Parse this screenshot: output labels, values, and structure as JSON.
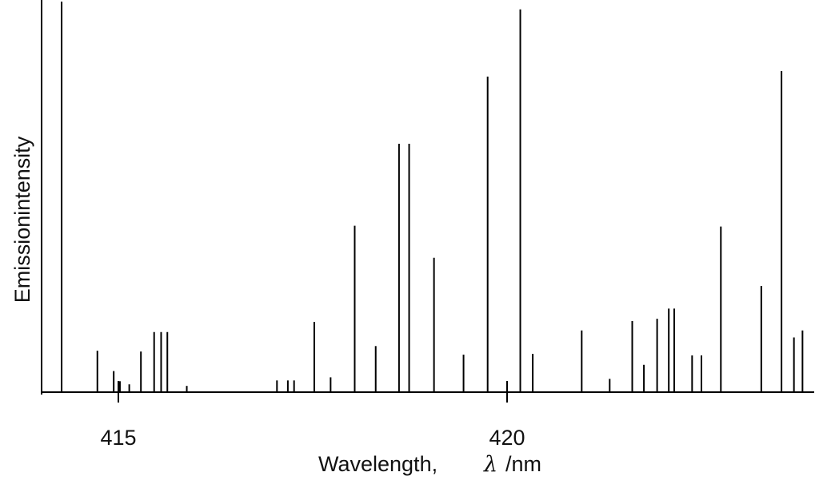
{
  "chart_data": {
    "type": "bar",
    "title": "",
    "xlabel": "Wavelength,",
    "xlabel_symbol": "λ",
    "xlabel_unit": "/nm",
    "ylabel": "Emissionintensity",
    "xlim": [
      414.2,
      424.0
    ],
    "ylim": [
      0,
      100
    ],
    "x_ticks": [
      415,
      420
    ],
    "grid": false,
    "legend": "none",
    "line_color": "#000000",
    "lines": [
      {
        "x": 414.27,
        "y": 100
      },
      {
        "x": 414.73,
        "y": 10.6
      },
      {
        "x": 414.94,
        "y": 5.4
      },
      {
        "x": 415.02,
        "y": 2.8
      },
      {
        "x": 415.14,
        "y": 2.0
      },
      {
        "x": 415.29,
        "y": 10.4
      },
      {
        "x": 415.46,
        "y": 15.4
      },
      {
        "x": 415.55,
        "y": 15.4
      },
      {
        "x": 415.63,
        "y": 15.4
      },
      {
        "x": 415.88,
        "y": 1.6
      },
      {
        "x": 417.04,
        "y": 3.0
      },
      {
        "x": 417.18,
        "y": 3.0
      },
      {
        "x": 417.26,
        "y": 3.0
      },
      {
        "x": 417.52,
        "y": 18.0
      },
      {
        "x": 417.73,
        "y": 3.8
      },
      {
        "x": 418.04,
        "y": 42.6
      },
      {
        "x": 418.31,
        "y": 11.8
      },
      {
        "x": 418.61,
        "y": 63.6
      },
      {
        "x": 418.74,
        "y": 63.6
      },
      {
        "x": 419.06,
        "y": 34.4
      },
      {
        "x": 419.44,
        "y": 9.6
      },
      {
        "x": 419.75,
        "y": 80.8
      },
      {
        "x": 420.0,
        "y": 2.8
      },
      {
        "x": 420.17,
        "y": 98.0
      },
      {
        "x": 420.33,
        "y": 9.8
      },
      {
        "x": 420.96,
        "y": 15.8
      },
      {
        "x": 421.32,
        "y": 3.4
      },
      {
        "x": 421.61,
        "y": 18.2
      },
      {
        "x": 421.76,
        "y": 7.0
      },
      {
        "x": 421.93,
        "y": 18.8
      },
      {
        "x": 422.08,
        "y": 21.4
      },
      {
        "x": 422.15,
        "y": 21.4
      },
      {
        "x": 422.38,
        "y": 9.4
      },
      {
        "x": 422.5,
        "y": 9.4
      },
      {
        "x": 422.75,
        "y": 42.4
      },
      {
        "x": 423.27,
        "y": 27.2
      },
      {
        "x": 423.53,
        "y": 82.2
      },
      {
        "x": 423.69,
        "y": 14.0
      },
      {
        "x": 423.8,
        "y": 15.8
      }
    ]
  }
}
